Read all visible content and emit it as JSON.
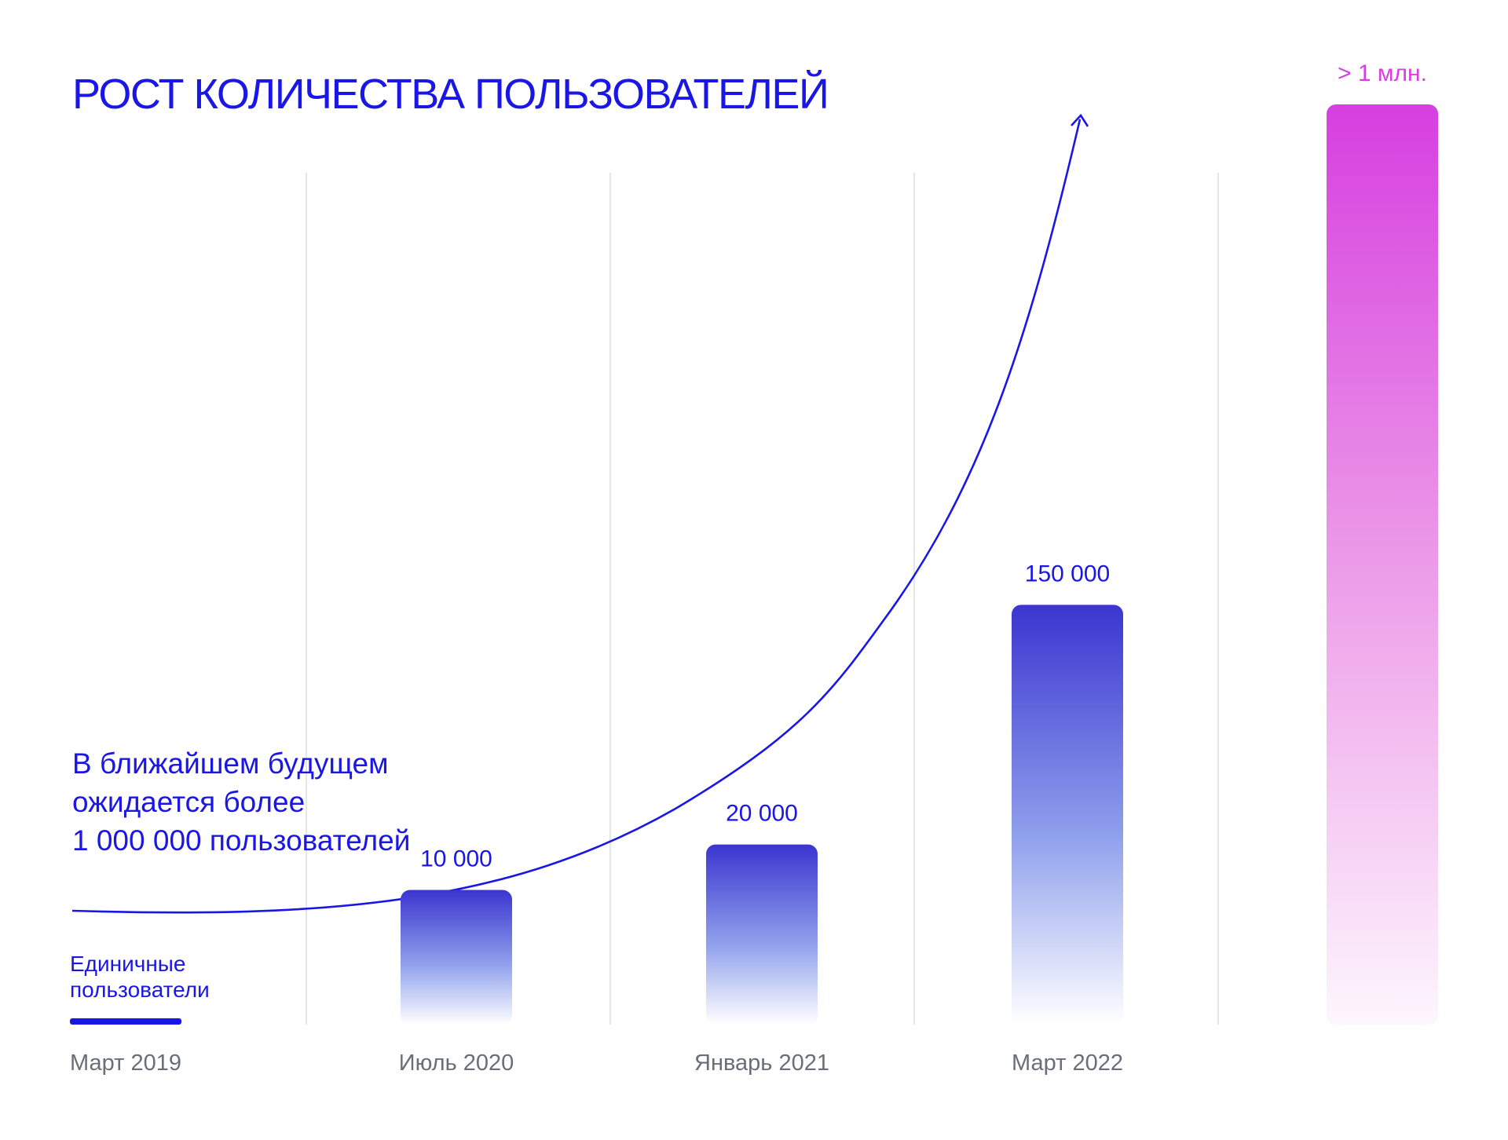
{
  "chart_data": {
    "type": "bar",
    "title": "РОСТ КОЛИЧЕСТВА ПОЛЬЗОВАТЕЛЕЙ",
    "annotation_lines": [
      "В ближайшем будущем",
      "ожидается более",
      "1 000 000 пользователей"
    ],
    "first_bar_label_lines": [
      "Единичные",
      "пользователи"
    ],
    "categories": [
      "Март 2019",
      "Июль 2020",
      "Январь 2021",
      "Март 2022",
      ""
    ],
    "values": [
      0,
      10000,
      20000,
      150000,
      1000000
    ],
    "value_labels": [
      "",
      "10 000",
      "20 000",
      "150 000",
      "> 1 млн."
    ],
    "scale": "nonlinear (visual exaggeration)",
    "grid": "vertical separators",
    "trend_arrow": true,
    "colors": {
      "primary": "#1a16e6",
      "bar_gradient_top": "#3b35d0",
      "bar_gradient_bottom": "#ffffff",
      "last_bar_top": "#d63fe0",
      "last_bar_bottom": "#ffffff",
      "tick_text": "#6b6e78",
      "grid": "#e6e6ea"
    }
  }
}
